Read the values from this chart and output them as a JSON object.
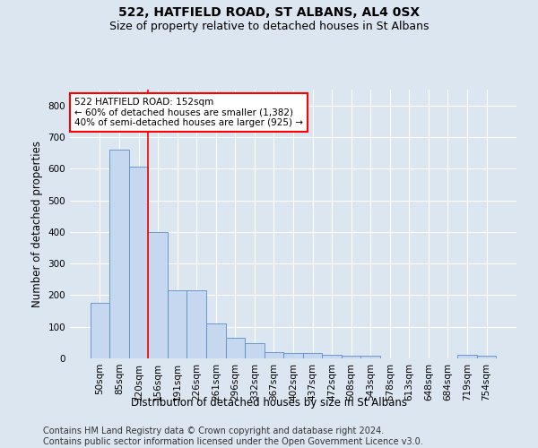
{
  "title1": "522, HATFIELD ROAD, ST ALBANS, AL4 0SX",
  "title2": "Size of property relative to detached houses in St Albans",
  "xlabel": "Distribution of detached houses by size in St Albans",
  "ylabel": "Number of detached properties",
  "categories": [
    "50sqm",
    "85sqm",
    "120sqm",
    "156sqm",
    "191sqm",
    "226sqm",
    "261sqm",
    "296sqm",
    "332sqm",
    "367sqm",
    "402sqm",
    "437sqm",
    "472sqm",
    "508sqm",
    "543sqm",
    "578sqm",
    "613sqm",
    "648sqm",
    "684sqm",
    "719sqm",
    "754sqm"
  ],
  "values": [
    175,
    660,
    605,
    400,
    215,
    215,
    110,
    65,
    48,
    20,
    18,
    18,
    12,
    8,
    8,
    0,
    0,
    0,
    0,
    10,
    8
  ],
  "bar_color": "#c5d8f0",
  "bar_edge_color": "#5b8cc8",
  "vline_x": 2.5,
  "vline_color": "red",
  "annotation_text": "522 HATFIELD ROAD: 152sqm\n← 60% of detached houses are smaller (1,382)\n40% of semi-detached houses are larger (925) →",
  "annotation_box_color": "white",
  "annotation_box_edge": "red",
  "ylim": [
    0,
    850
  ],
  "yticks": [
    0,
    100,
    200,
    300,
    400,
    500,
    600,
    700,
    800
  ],
  "background_color": "#dce6f0",
  "plot_bg_color": "#dce6f0",
  "footer1": "Contains HM Land Registry data © Crown copyright and database right 2024.",
  "footer2": "Contains public sector information licensed under the Open Government Licence v3.0.",
  "title_fontsize": 10,
  "subtitle_fontsize": 9,
  "tick_fontsize": 7.5,
  "label_fontsize": 8.5,
  "annotation_fontsize": 7.5,
  "footer_fontsize": 7
}
